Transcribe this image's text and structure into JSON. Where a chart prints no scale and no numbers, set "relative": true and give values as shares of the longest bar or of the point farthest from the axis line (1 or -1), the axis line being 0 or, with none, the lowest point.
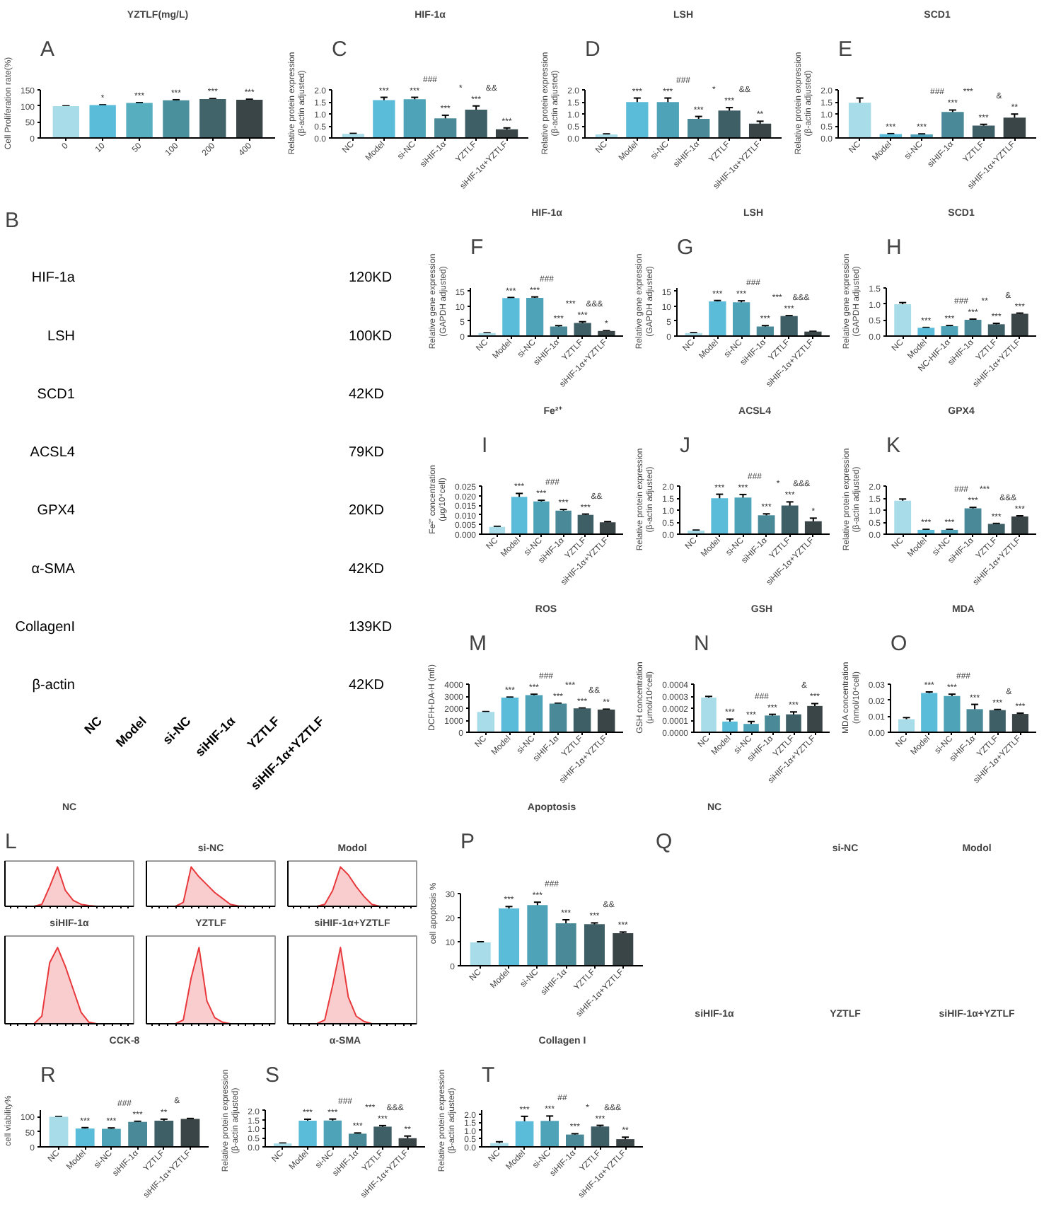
{
  "chart_data": [
    {
      "type": "bar",
      "title": "YZTLF(mg/L)",
      "annotations": [
        "A"
      ],
      "ylabel": "Cell Proliferation rate(%)",
      "categories": [
        "0",
        "10",
        "50",
        "100",
        "200",
        "400"
      ],
      "values": [
        100,
        103,
        110,
        118,
        122,
        120
      ],
      "errors": [
        0.5,
        1,
        1,
        2,
        1.5,
        1.5
      ],
      "colors": [
        "#a8dce8",
        "#5bbcd9",
        "#56aebf",
        "#4a8f9c",
        "#41636a",
        "#3a4547"
      ],
      "value_labels": [
        null,
        "*",
        "***",
        "***",
        "***",
        "***"
      ],
      "ylim": [
        0,
        150
      ],
      "yticks": [
        0,
        50,
        100,
        150
      ]
    },
    {
      "type": "bar",
      "title": "HIF-1α",
      "annotations": [
        "C",
        "###",
        "*",
        "&&"
      ],
      "ylabel": "Relative protein expression\n(β-actin adjusted)",
      "categories": [
        "NC",
        "Model",
        "si-NC",
        "siHIF-1α",
        "YZTLF",
        "siHIF-1α+YZTLF"
      ],
      "values": [
        0.17,
        1.58,
        1.62,
        0.82,
        1.18,
        0.36
      ],
      "errors": [
        0.02,
        0.12,
        0.08,
        0.13,
        0.16,
        0.06
      ],
      "colors": [
        "#a8dce8",
        "#5bbcd9",
        "#4fa3b8",
        "#4a8a98",
        "#3f5f66",
        "#3a4547"
      ],
      "value_labels": [
        null,
        "***",
        "***",
        "***",
        "***",
        "***"
      ],
      "ylim": [
        0,
        2
      ],
      "yticks": [
        {
          "value": 0,
          "label": "0.0"
        },
        {
          "value": 0.5,
          "label": "0.5"
        },
        {
          "value": 1,
          "label": "1.0"
        },
        {
          "value": 1.5,
          "label": "1.5"
        },
        {
          "value": 2,
          "label": "2.0"
        }
      ]
    },
    {
      "type": "bar",
      "title": "LSH",
      "annotations": [
        "D",
        "###",
        "*",
        "&&"
      ],
      "ylabel": "Relative protein expression\n(β-actin adjusted)",
      "categories": [
        "NC",
        "Model",
        "si-NC",
        "siHIF-1α",
        "YZTLF",
        "siHIF-1α+YZTLF"
      ],
      "values": [
        0.15,
        1.5,
        1.5,
        0.8,
        1.15,
        0.6
      ],
      "errors": [
        0.02,
        0.17,
        0.17,
        0.1,
        0.12,
        0.1
      ],
      "colors": [
        "#a8dce8",
        "#5bbcd9",
        "#4fa3b8",
        "#4a8a98",
        "#3f5f66",
        "#3a4547"
      ],
      "value_labels": [
        null,
        "***",
        "***",
        "***",
        "***",
        "**"
      ],
      "ylim": [
        0,
        2
      ],
      "yticks": [
        {
          "value": 0,
          "label": "0.0"
        },
        {
          "value": 0.5,
          "label": "0.5"
        },
        {
          "value": 1,
          "label": "1.0"
        },
        {
          "value": 1.5,
          "label": "1.5"
        },
        {
          "value": 2,
          "label": "2.0"
        }
      ]
    },
    {
      "type": "bar",
      "title": "SCD1",
      "annotations": [
        "E",
        "###",
        "***",
        "&"
      ],
      "ylabel": "Relative protein expression\n(β-actin adjusted)",
      "categories": [
        "NC",
        "Model",
        "si-NC",
        "siHIF-1α",
        "YZTLF",
        "siHIF-1α+YZTLF"
      ],
      "values": [
        1.47,
        0.16,
        0.15,
        1.09,
        0.52,
        0.85
      ],
      "errors": [
        0.2,
        0.02,
        0.02,
        0.08,
        0.05,
        0.15
      ],
      "colors": [
        "#a8dce8",
        "#5bbcd9",
        "#4fa3b8",
        "#4a8a98",
        "#3f5f66",
        "#3a4547"
      ],
      "value_labels": [
        null,
        "***",
        "***",
        "***",
        "***",
        "**"
      ],
      "ylim": [
        0,
        2
      ],
      "yticks": [
        {
          "value": 0,
          "label": "0.0"
        },
        {
          "value": 0.5,
          "label": "0.5"
        },
        {
          "value": 1,
          "label": "1.0"
        },
        {
          "value": 1.5,
          "label": "1.5"
        },
        {
          "value": 2,
          "label": "2.0"
        }
      ]
    },
    {
      "type": "other",
      "annotations": [
        "B"
      ],
      "categories": [
        "NC",
        "Model",
        "si-NC",
        "siHIF-1α",
        "YZTLF",
        "siHIF-1α+YZTLF"
      ],
      "y_categories": [
        "HIF-1a",
        "LSH",
        "SCD1",
        "ACSL4",
        "GPX4",
        "α-SMA",
        "CollagenI",
        "β-actin"
      ],
      "y2_categories": [
        "120KD",
        "100KD",
        "42KD",
        "79KD",
        "20KD",
        "42KD",
        "139KD",
        "42KD"
      ]
    },
    {
      "type": "bar",
      "title": "HIF-1α",
      "annotations": [
        "F",
        "###",
        "***",
        "&&&"
      ],
      "ylabel": "Relative gene expression\n(GAPDH adjusted)",
      "categories": [
        "NC",
        "Model",
        "si-NC",
        "siHIF-1α",
        "YZTLF",
        "siHIF-1α+YZTLF"
      ],
      "values": [
        1.0,
        12.7,
        12.8,
        3.2,
        4.4,
        1.7
      ],
      "errors": [
        0.1,
        0.2,
        0.3,
        0.3,
        0.4,
        0.1
      ],
      "colors": [
        "#a8dce8",
        "#5bbcd9",
        "#4fa3b8",
        "#4a8a98",
        "#3f5f66",
        "#3a4547"
      ],
      "value_labels": [
        null,
        "***",
        "***",
        "***",
        "***",
        "*"
      ],
      "ylim": [
        0,
        16
      ],
      "yticks": [
        0,
        5,
        10,
        15
      ]
    },
    {
      "type": "bar",
      "title": "LSH",
      "annotations": [
        "G",
        "###",
        "***",
        "&&&"
      ],
      "ylabel": "Relative gene expression\n(GAPDH adjusted)",
      "categories": [
        "NC",
        "Model",
        "si-NC",
        "siHIF-1α",
        "YZTLF",
        "siHIF-1α+YZTLF"
      ],
      "values": [
        1.0,
        11.6,
        11.3,
        3.2,
        6.7,
        1.5
      ],
      "errors": [
        0.15,
        0.3,
        0.5,
        0.3,
        0.15,
        0.1
      ],
      "colors": [
        "#a8dce8",
        "#5bbcd9",
        "#4fa3b8",
        "#4a8a98",
        "#3f5f66",
        "#3a4547"
      ],
      "value_labels": [
        null,
        "***",
        "***",
        "***",
        "***",
        null
      ],
      "ylim": [
        0,
        16
      ],
      "yticks": [
        0,
        5,
        10,
        15
      ]
    },
    {
      "type": "bar",
      "title": "SCD1",
      "annotations": [
        "H",
        "###",
        "**",
        "&"
      ],
      "ylabel": "Relative gene expression\n(GAPDH adjusted)",
      "categories": [
        "NC",
        "Model",
        "NC-HIF-1α",
        "siHIF-1α",
        "YZTLF",
        "siHIF-1α+YZTLF"
      ],
      "values": [
        1.0,
        0.26,
        0.31,
        0.51,
        0.37,
        0.7
      ],
      "errors": [
        0.05,
        0.01,
        0.02,
        0.02,
        0.03,
        0.02
      ],
      "colors": [
        "#a8dce8",
        "#5bbcd9",
        "#4fa3b8",
        "#4a8a98",
        "#3f5f66",
        "#3a4547"
      ],
      "value_labels": [
        null,
        "***",
        "***",
        "***",
        "***",
        "***"
      ],
      "ylim": [
        0,
        1.5
      ],
      "yticks": [
        {
          "value": 0,
          "label": "0.0"
        },
        {
          "value": 0.5,
          "label": "0.5"
        },
        {
          "value": 1,
          "label": "1.0"
        },
        {
          "value": 1.5,
          "label": "1.5"
        }
      ]
    },
    {
      "type": "bar",
      "title": "Fe²⁺",
      "annotations": [
        "I",
        "###",
        "&&"
      ],
      "ylabel": "Fe²⁺ concentration\n(μg/10⁴cell)",
      "categories": [
        "NC",
        "Model",
        "si-NC",
        "siHIF-1α",
        "YZTLF",
        "siHIF-1α+YZTLF"
      ],
      "values": [
        0.0038,
        0.0195,
        0.0171,
        0.0123,
        0.0101,
        0.0062
      ],
      "errors": [
        0.0003,
        0.0018,
        0.0006,
        0.0006,
        0.0004,
        0.0004
      ],
      "colors": [
        "#a8dce8",
        "#5bbcd9",
        "#4fa3b8",
        "#4a8a98",
        "#3f5f66",
        "#3a4547"
      ],
      "value_labels": [
        null,
        "***",
        "***",
        "***",
        "***",
        null
      ],
      "ylim": [
        0,
        0.025
      ],
      "yticks": [
        {
          "value": 0,
          "label": "0.000"
        },
        {
          "value": 0.005,
          "label": "0.005"
        },
        {
          "value": 0.01,
          "label": "0.010"
        },
        {
          "value": 0.015,
          "label": "0.015"
        },
        {
          "value": 0.02,
          "label": "0.020"
        },
        {
          "value": 0.025,
          "label": "0.025"
        }
      ]
    },
    {
      "type": "bar",
      "title": "ACSL4",
      "annotations": [
        "J",
        "###",
        "*",
        "&&&"
      ],
      "ylabel": "Relative protein expression\n(β-actin adjusted)",
      "categories": [
        "NC",
        "Model",
        "si-NC",
        "siHIF-1α",
        "YZTLF",
        "siHIF-1α+YZTLF"
      ],
      "values": [
        0.15,
        1.5,
        1.53,
        0.79,
        1.2,
        0.54
      ],
      "errors": [
        0.02,
        0.17,
        0.13,
        0.06,
        0.15,
        0.13
      ],
      "colors": [
        "#a8dce8",
        "#5bbcd9",
        "#4fa3b8",
        "#4a8a98",
        "#3f5f66",
        "#3a4547"
      ],
      "value_labels": [
        null,
        "***",
        "***",
        "***",
        "***",
        "*"
      ],
      "ylim": [
        0,
        2
      ],
      "yticks": [
        {
          "value": 0,
          "label": "0.0"
        },
        {
          "value": 0.5,
          "label": "0.5"
        },
        {
          "value": 1,
          "label": "1.0"
        },
        {
          "value": 1.5,
          "label": "1.5"
        },
        {
          "value": 2,
          "label": "2.0"
        }
      ]
    },
    {
      "type": "bar",
      "title": "GPX4",
      "annotations": [
        "K",
        "###",
        "***",
        "&&&"
      ],
      "ylabel": "Relative protein expression\n(β-actin adjusted)",
      "categories": [
        "NC",
        "Model",
        "si-NC",
        "siHIF-1α",
        "YZTLF",
        "siHIF-1α+YZTLF"
      ],
      "values": [
        1.4,
        0.18,
        0.18,
        1.08,
        0.43,
        0.74
      ],
      "errors": [
        0.07,
        0.02,
        0.02,
        0.04,
        0.02,
        0.03
      ],
      "colors": [
        "#a8dce8",
        "#5bbcd9",
        "#4fa3b8",
        "#4a8a98",
        "#3f5f66",
        "#3a4547"
      ],
      "value_labels": [
        null,
        "***",
        "***",
        "***",
        "***",
        "***"
      ],
      "ylim": [
        0,
        2
      ],
      "yticks": [
        {
          "value": 0,
          "label": "0.0"
        },
        {
          "value": 0.5,
          "label": "0.5"
        },
        {
          "value": 1,
          "label": "1.0"
        },
        {
          "value": 1.5,
          "label": "1.5"
        },
        {
          "value": 2,
          "label": "2.0"
        }
      ]
    },
    {
      "type": "bar",
      "title": "ROS",
      "annotations": [
        "M",
        "###",
        "***",
        "&&"
      ],
      "ylabel": "DCFH-DA-H (mfi)",
      "categories": [
        "NC",
        "Model",
        "si-NC",
        "siHIF-1α",
        "YZTLF",
        "siHIF-1α+YZTLF"
      ],
      "values": [
        1700,
        2900,
        3100,
        2400,
        2000,
        1900
      ],
      "errors": [
        30,
        40,
        80,
        30,
        30,
        30
      ],
      "colors": [
        "#a8dce8",
        "#5bbcd9",
        "#4fa3b8",
        "#4a8a98",
        "#3f5f66",
        "#3a4547"
      ],
      "value_labels": [
        null,
        "***",
        "***",
        "***",
        "***",
        "**"
      ],
      "ylim": [
        0,
        4000
      ],
      "yticks": [
        0,
        1000,
        2000,
        3000,
        4000
      ]
    },
    {
      "type": "bar",
      "title": "GSH",
      "annotations": [
        "N",
        "###",
        "&"
      ],
      "ylabel": "GSH concentration\n(μmol/10⁴cell)",
      "categories": [
        "NC",
        "Model",
        "si-NC",
        "siHIF-1α",
        "YZTLF",
        "siHIF-1α+YZTLF"
      ],
      "values": [
        0.00029,
        9e-05,
        7e-05,
        0.00014,
        0.00015,
        0.00022
      ],
      "errors": [
        1e-05,
        2e-05,
        2e-05,
        1e-05,
        2e-05,
        2e-05
      ],
      "colors": [
        "#a8dce8",
        "#5bbcd9",
        "#4fa3b8",
        "#4a8a98",
        "#3f5f66",
        "#3a4547"
      ],
      "value_labels": [
        null,
        "***",
        "***",
        "***",
        "***",
        "***"
      ],
      "ylim": [
        0,
        0.0004
      ],
      "yticks": [
        {
          "value": 0,
          "label": "0.0000"
        },
        {
          "value": 0.0001,
          "label": "0.0001"
        },
        {
          "value": 0.0002,
          "label": "0.0002"
        },
        {
          "value": 0.0003,
          "label": "0.0003"
        },
        {
          "value": 0.0004,
          "label": "0.0004"
        }
      ]
    },
    {
      "type": "bar",
      "title": "MDA",
      "annotations": [
        "O",
        "###",
        "&"
      ],
      "ylabel": "MDA concentration\n(nmol/10⁴cell)",
      "categories": [
        "NC",
        "Model",
        "si-NC",
        "siHIF-1α",
        "YZTLF",
        "siHIF-1α+YZTLF"
      ],
      "values": [
        0.0082,
        0.0246,
        0.0227,
        0.0145,
        0.0139,
        0.0115
      ],
      "errors": [
        0.001,
        0.0007,
        0.0012,
        0.003,
        0.0004,
        0.0005
      ],
      "colors": [
        "#a8dce8",
        "#5bbcd9",
        "#4fa3b8",
        "#4a8a98",
        "#3f5f66",
        "#3a4547"
      ],
      "value_labels": [
        null,
        "***",
        "***",
        "***",
        "***",
        "***"
      ],
      "ylim": [
        0,
        0.03
      ],
      "yticks": [
        {
          "value": 0,
          "label": "0.00"
        },
        {
          "value": 0.01,
          "label": "0.01"
        },
        {
          "value": 0.02,
          "label": "0.02"
        },
        {
          "value": 0.03,
          "label": "0.03"
        }
      ]
    },
    {
      "type": "area",
      "title": "NC",
      "annotations": [
        "L"
      ],
      "relative": true,
      "color": "#e8393c",
      "categories": [
        null,
        null,
        null,
        null,
        null,
        null,
        null,
        null,
        null,
        null,
        null,
        null,
        null,
        null,
        null,
        null
      ],
      "values": [
        0,
        0,
        0,
        0,
        0.05,
        0.5,
        1,
        0.4,
        0.15,
        0.05,
        0.02,
        0,
        0,
        0,
        0,
        0
      ]
    },
    {
      "type": "area",
      "title": "si-NC",
      "relative": true,
      "color": "#e8393c",
      "categories": [
        null,
        null,
        null,
        null,
        null,
        null,
        null,
        null,
        null,
        null,
        null,
        null,
        null,
        null,
        null,
        null
      ],
      "values": [
        0,
        0,
        0,
        0,
        0.1,
        1,
        0.75,
        0.55,
        0.35,
        0.2,
        0.05,
        0.01,
        0,
        0,
        0,
        0
      ]
    },
    {
      "type": "area",
      "title": "Modol",
      "relative": true,
      "color": "#e8393c",
      "categories": [
        null,
        null,
        null,
        null,
        null,
        null,
        null,
        null,
        null,
        null,
        null,
        null,
        null,
        null,
        null,
        null
      ],
      "values": [
        0,
        0,
        0,
        0,
        0.05,
        0.4,
        1,
        0.8,
        0.5,
        0.25,
        0.05,
        0,
        0,
        0,
        0,
        0
      ]
    },
    {
      "type": "area",
      "title": "siHIF-1α",
      "relative": true,
      "color": "#e8393c",
      "categories": [
        null,
        null,
        null,
        null,
        null,
        null,
        null,
        null,
        null,
        null,
        null,
        null,
        null,
        null,
        null,
        null
      ],
      "values": [
        0,
        0,
        0,
        0,
        0.1,
        0.8,
        1,
        0.75,
        0.45,
        0.15,
        0.02,
        0,
        0,
        0,
        0,
        0
      ]
    },
    {
      "type": "area",
      "title": "YZTLF",
      "relative": true,
      "color": "#e8393c",
      "categories": [
        null,
        null,
        null,
        null,
        null,
        null,
        null,
        null,
        null,
        null,
        null,
        null,
        null,
        null,
        null,
        null
      ],
      "values": [
        0,
        0,
        0,
        0,
        0.05,
        0.6,
        1,
        0.3,
        0.08,
        0.02,
        0,
        0,
        0,
        0,
        0,
        0
      ]
    },
    {
      "type": "area",
      "title": "siHIF-1α+YZTLF",
      "relative": true,
      "color": "#e8393c",
      "categories": [
        null,
        null,
        null,
        null,
        null,
        null,
        null,
        null,
        null,
        null,
        null,
        null,
        null,
        null,
        null,
        null
      ],
      "values": [
        0,
        0,
        0,
        0,
        0.05,
        0.5,
        1,
        0.35,
        0.1,
        0.03,
        0,
        0,
        0,
        0,
        0,
        0
      ]
    },
    {
      "type": "bar",
      "title": "Apoptosis",
      "annotations": [
        "P",
        "###",
        "&&"
      ],
      "ylabel": "cell apoptosis %",
      "categories": [
        "NC",
        "Model",
        "si-NC",
        "siHIF-1α",
        "YZTLF",
        "siHIF-1α+YZTLF"
      ],
      "values": [
        9.7,
        23.8,
        25.2,
        17.6,
        17.3,
        13.5
      ],
      "errors": [
        0.3,
        0.8,
        1.2,
        1.5,
        0.5,
        0.5
      ],
      "colors": [
        "#a8dce8",
        "#5bbcd9",
        "#4fa3b8",
        "#4a8a98",
        "#3f5f66",
        "#3a4547"
      ],
      "value_labels": [
        null,
        "***",
        "***",
        "***",
        "***",
        "***"
      ],
      "ylim": [
        0,
        30
      ],
      "yticks": [
        0,
        10,
        20,
        30
      ]
    },
    {
      "type": "other",
      "title": "NC",
      "annotations": [
        "Q"
      ]
    },
    {
      "type": "other",
      "title": "si-NC"
    },
    {
      "type": "other",
      "title": "Modol"
    },
    {
      "type": "other",
      "title": "siHIF-1α"
    },
    {
      "type": "other",
      "title": "YZTLF"
    },
    {
      "type": "other",
      "title": "siHIF-1α+YZTLF"
    },
    {
      "type": "bar",
      "title": "CCK-8",
      "annotations": [
        "R",
        "###",
        "&"
      ],
      "ylabel": "cell viability%",
      "categories": [
        "NC",
        "Model",
        "si-NC",
        "siHIF-1α",
        "YZTLF",
        "siHIF-1α+YZTLF"
      ],
      "values": [
        100,
        61,
        60,
        83,
        87,
        93
      ],
      "errors": [
        1,
        3,
        3,
        2,
        5,
        1.5
      ],
      "colors": [
        "#a8dce8",
        "#5bbcd9",
        "#4fa3b8",
        "#4a8a98",
        "#3f5f66",
        "#3a4547"
      ],
      "value_labels": [
        null,
        "***",
        "***",
        "***",
        "**",
        null
      ],
      "ylim": [
        0,
        120
      ],
      "yticks": [
        0,
        50,
        100
      ]
    },
    {
      "type": "bar",
      "title": "α-SMA",
      "annotations": [
        "S",
        "###",
        "***",
        "&&&"
      ],
      "ylabel": "Relative protein expression\n(β-actin adjusted)",
      "categories": [
        "NC",
        "Model",
        "si-NC",
        "siHIF-1α",
        "YZTLF",
        "siHIF-1α+YZTLF"
      ],
      "values": [
        0.19,
        1.45,
        1.46,
        0.73,
        1.12,
        0.48
      ],
      "errors": [
        0.02,
        0.08,
        0.08,
        0.04,
        0.06,
        0.12
      ],
      "colors": [
        "#a8dce8",
        "#5bbcd9",
        "#4fa3b8",
        "#4a8a98",
        "#3f5f66",
        "#3a4547"
      ],
      "value_labels": [
        null,
        "***",
        "***",
        "***",
        "***",
        "**"
      ],
      "ylim": [
        0,
        2
      ],
      "yticks": [
        {
          "value": 0,
          "label": "0.0"
        },
        {
          "value": 0.5,
          "label": "0.5"
        },
        {
          "value": 1,
          "label": "1.0"
        },
        {
          "value": 1.5,
          "label": "1.5"
        },
        {
          "value": 2,
          "label": "2.0"
        }
      ]
    },
    {
      "type": "bar",
      "title": "Collagen I",
      "annotations": [
        "T",
        "##",
        "*",
        "&&&"
      ],
      "ylabel": "Relative protein expression\n(β-actin adjusted)",
      "categories": [
        "NC",
        "Model",
        "si-NC",
        "siHIF-1α",
        "YZTLF",
        "siHIF-1α+YZTLF"
      ],
      "values": [
        0.23,
        1.56,
        1.58,
        0.75,
        1.24,
        0.47
      ],
      "errors": [
        0.08,
        0.3,
        0.3,
        0.05,
        0.07,
        0.12
      ],
      "colors": [
        "#a8dce8",
        "#5bbcd9",
        "#4fa3b8",
        "#4a8a98",
        "#3f5f66",
        "#3a4547"
      ],
      "value_labels": [
        null,
        "***",
        "***",
        "***",
        "***",
        "**"
      ],
      "ylim": [
        0,
        2.2
      ],
      "yticks": [
        {
          "value": 0,
          "label": "0.0"
        },
        {
          "value": 0.5,
          "label": "0.5"
        },
        {
          "value": 1,
          "label": "1.0"
        },
        {
          "value": 1.5,
          "label": "1.5"
        },
        {
          "value": 2,
          "label": "2.0"
        }
      ]
    }
  ]
}
